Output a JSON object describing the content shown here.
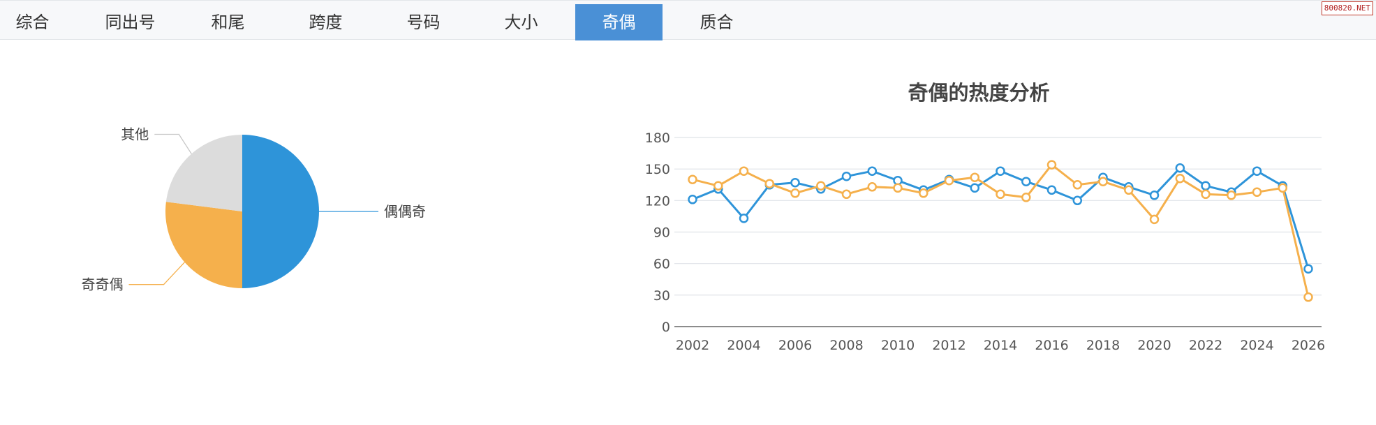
{
  "nav": {
    "tabs": [
      {
        "label": "综合",
        "active": false
      },
      {
        "label": "同出号",
        "active": false
      },
      {
        "label": "和尾",
        "active": false
      },
      {
        "label": "跨度",
        "active": false
      },
      {
        "label": "号码",
        "active": false
      },
      {
        "label": "大小",
        "active": false
      },
      {
        "label": "奇偶",
        "active": true
      },
      {
        "label": "质合",
        "active": false
      }
    ],
    "active_color": "#4a90d6"
  },
  "watermark": "800820.NET",
  "chart_data": [
    {
      "type": "pie",
      "labels": [
        "偶偶奇",
        "奇奇偶",
        "其他"
      ],
      "values": [
        50,
        27,
        23
      ],
      "colors": [
        "#2e94d9",
        "#f5b04c",
        "#dcdcdc"
      ]
    },
    {
      "type": "line",
      "title": "奇偶的热度分析",
      "x": [
        2002,
        2003,
        2004,
        2005,
        2006,
        2007,
        2008,
        2009,
        2010,
        2011,
        2012,
        2013,
        2014,
        2015,
        2016,
        2017,
        2018,
        2019,
        2020,
        2021,
        2022,
        2023,
        2024,
        2025,
        2026
      ],
      "x_ticks": [
        2002,
        2004,
        2006,
        2008,
        2010,
        2012,
        2014,
        2016,
        2018,
        2020,
        2022,
        2024,
        2026
      ],
      "ylim": [
        0,
        180
      ],
      "y_ticks": [
        0,
        30,
        60,
        90,
        120,
        150,
        180
      ],
      "grid": true,
      "series": [
        {
          "color": "#2e94d9",
          "values": [
            121,
            131,
            103,
            135,
            137,
            131,
            143,
            148,
            139,
            130,
            140,
            132,
            148,
            138,
            130,
            120,
            142,
            133,
            125,
            151,
            134,
            128,
            148,
            134,
            55
          ]
        },
        {
          "color": "#f5b04c",
          "values": [
            140,
            134,
            148,
            136,
            127,
            134,
            126,
            133,
            132,
            127,
            139,
            142,
            126,
            123,
            154,
            135,
            138,
            130,
            102,
            141,
            126,
            125,
            128,
            132,
            28
          ]
        }
      ]
    }
  ]
}
